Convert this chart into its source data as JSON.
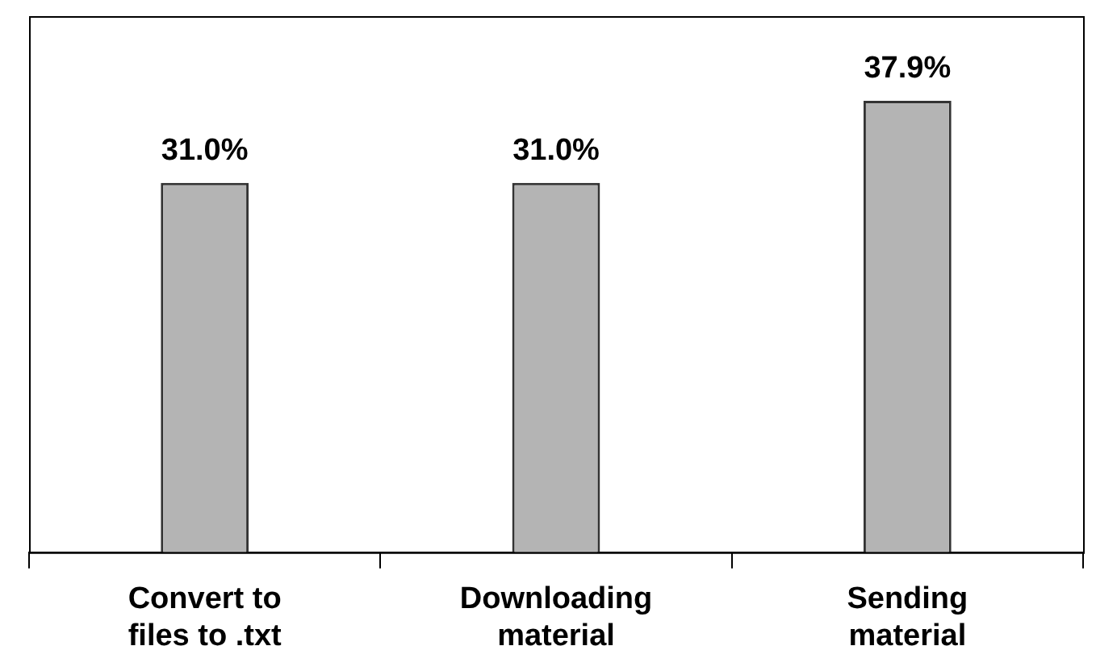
{
  "chart_data": {
    "type": "bar",
    "categories": [
      "Convert to files to .txt",
      "Downloading material",
      "Sending material"
    ],
    "values": [
      31.0,
      31.0,
      37.9
    ],
    "value_labels": [
      "31.0%",
      "31.0%",
      "37.9%"
    ],
    "color": "#b4b4b4",
    "grid": false
  }
}
